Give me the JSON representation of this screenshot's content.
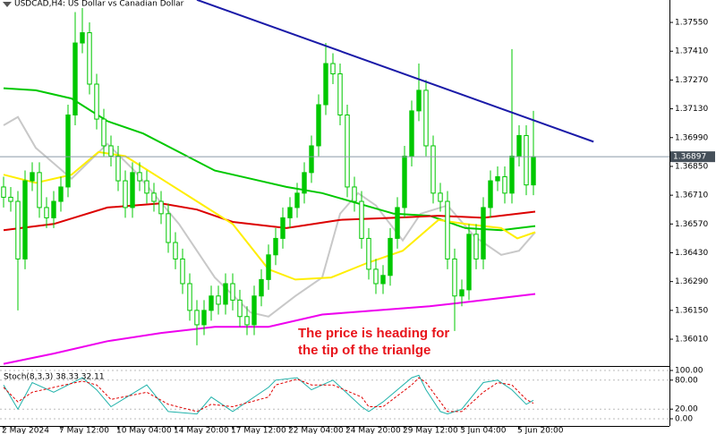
{
  "chart_data": [
    {
      "type": "candlestick",
      "title": "USDCAD,H4:  US Dollar vs Canadian Dollar",
      "categories": [
        "2 May 2024",
        null,
        null,
        null,
        null,
        null,
        null,
        null,
        "7 May 12:00",
        null,
        null,
        null,
        null,
        null,
        null,
        null,
        "10 May 04:00",
        null,
        null,
        null,
        null,
        null,
        null,
        null,
        "14 May 20:00",
        null,
        null,
        null,
        null,
        null,
        null,
        null,
        "17 May 12:00",
        null,
        null,
        null,
        null,
        null,
        null,
        null,
        "22 May 04:00",
        null,
        null,
        null,
        null,
        null,
        null,
        null,
        "24 May 20:00",
        null,
        null,
        null,
        null,
        null,
        null,
        null,
        "29 May 12:00",
        null,
        null,
        null,
        null,
        null,
        null,
        null,
        "3 Jun 04:00",
        null,
        null,
        null,
        null,
        null,
        null,
        null,
        "5 Jun 20:00",
        null,
        null
      ],
      "open": [
        1.3675,
        1.367,
        1.3668,
        1.364,
        1.3678,
        1.3682,
        1.3665,
        1.366,
        1.3668,
        1.3675,
        1.371,
        1.3745,
        1.375,
        1.3725,
        1.3708,
        1.3695,
        1.369,
        1.3678,
        1.3665,
        1.3682,
        1.3678,
        1.3672,
        1.3668,
        1.3662,
        1.3648,
        1.364,
        1.3628,
        1.3615,
        1.3608,
        1.3615,
        1.3622,
        1.3618,
        1.3628,
        1.362,
        1.3612,
        1.3608,
        1.3622,
        1.363,
        1.3642,
        1.365,
        1.366,
        1.3665,
        1.3672,
        1.3682,
        1.3695,
        1.3715,
        1.3735,
        1.373,
        1.371,
        1.3675,
        1.3668,
        1.365,
        1.3635,
        1.3628,
        1.3632,
        1.365,
        1.3665,
        1.369,
        1.3712,
        1.3722,
        1.3695,
        1.3672,
        1.3668,
        1.364,
        1.3622,
        1.3625,
        1.3652,
        1.364,
        1.3665,
        1.3678,
        1.368,
        1.3672,
        1.369,
        1.37,
        1.3676
      ],
      "high": [
        1.368,
        1.3675,
        1.3673,
        1.3683,
        1.3687,
        1.3687,
        1.367,
        1.3673,
        1.368,
        1.3715,
        1.376,
        1.3762,
        1.3755,
        1.373,
        1.3713,
        1.37,
        1.3695,
        1.3683,
        1.3687,
        1.3687,
        1.3683,
        1.3677,
        1.3673,
        1.3667,
        1.3653,
        1.3645,
        1.3633,
        1.362,
        1.362,
        1.3627,
        1.3627,
        1.3633,
        1.3633,
        1.3625,
        1.3617,
        1.3627,
        1.3635,
        1.3647,
        1.3655,
        1.3665,
        1.367,
        1.3677,
        1.3687,
        1.37,
        1.372,
        1.3745,
        1.374,
        1.3735,
        1.3715,
        1.368,
        1.3673,
        1.3655,
        1.364,
        1.3637,
        1.3655,
        1.367,
        1.3695,
        1.3717,
        1.3735,
        1.3727,
        1.37,
        1.3677,
        1.3673,
        1.3645,
        1.363,
        1.3657,
        1.3657,
        1.367,
        1.3683,
        1.3685,
        1.3685,
        1.3742,
        1.3705,
        1.3705,
        1.3712
      ],
      "low": [
        1.3665,
        1.3663,
        1.3615,
        1.3635,
        1.3673,
        1.366,
        1.3655,
        1.3655,
        1.3663,
        1.367,
        1.3705,
        1.374,
        1.372,
        1.3703,
        1.369,
        1.3685,
        1.3673,
        1.366,
        1.366,
        1.3673,
        1.3667,
        1.3663,
        1.3657,
        1.3643,
        1.3635,
        1.3623,
        1.361,
        1.3598,
        1.3603,
        1.361,
        1.3613,
        1.3613,
        1.3615,
        1.3607,
        1.3603,
        1.3603,
        1.3617,
        1.3625,
        1.3637,
        1.3645,
        1.3655,
        1.366,
        1.3667,
        1.3677,
        1.369,
        1.371,
        1.3725,
        1.3705,
        1.367,
        1.3663,
        1.3645,
        1.363,
        1.3623,
        1.3623,
        1.3627,
        1.3645,
        1.366,
        1.3685,
        1.3707,
        1.369,
        1.3667,
        1.3663,
        1.3635,
        1.3605,
        1.3617,
        1.362,
        1.3635,
        1.3635,
        1.366,
        1.3673,
        1.3667,
        1.3667,
        1.3685,
        1.3671,
        1.3671
      ],
      "close": [
        1.367,
        1.3668,
        1.364,
        1.3678,
        1.3682,
        1.3665,
        1.366,
        1.3668,
        1.3675,
        1.371,
        1.3745,
        1.375,
        1.3725,
        1.3708,
        1.3695,
        1.369,
        1.3678,
        1.3665,
        1.3682,
        1.3678,
        1.3672,
        1.3668,
        1.3662,
        1.3648,
        1.364,
        1.3628,
        1.3615,
        1.3608,
        1.3615,
        1.3622,
        1.3618,
        1.3628,
        1.362,
        1.3612,
        1.3608,
        1.3622,
        1.363,
        1.3642,
        1.365,
        1.366,
        1.3665,
        1.3672,
        1.3682,
        1.3695,
        1.3715,
        1.3735,
        1.373,
        1.371,
        1.3675,
        1.3668,
        1.365,
        1.3635,
        1.3628,
        1.3632,
        1.365,
        1.3665,
        1.369,
        1.3712,
        1.3722,
        1.3695,
        1.3672,
        1.3668,
        1.364,
        1.3622,
        1.3625,
        1.3652,
        1.364,
        1.3665,
        1.3678,
        1.368,
        1.3672,
        1.369,
        1.37,
        1.3676,
        1.36897
      ],
      "color": "#00c800",
      "xlim": [
        -0.5,
        93
      ],
      "ylim": [
        1.35884,
        1.37659
      ],
      "yticks": [
        {
          "value": 1.3755,
          "label": "1.37550"
        },
        {
          "value": 1.3741,
          "label": "1.37410"
        },
        {
          "value": 1.3727,
          "label": "1.37270"
        },
        {
          "value": 1.3713,
          "label": "1.37130"
        },
        {
          "value": 1.3699,
          "label": "1.36990"
        },
        {
          "value": 1.3685,
          "label": "1.36850"
        },
        {
          "value": 1.3671,
          "label": "1.36710"
        },
        {
          "value": 1.3657,
          "label": "1.36570"
        },
        {
          "value": 1.3643,
          "label": "1.36430"
        },
        {
          "value": 1.3629,
          "label": "1.36290"
        },
        {
          "value": 1.3615,
          "label": "1.36150"
        },
        {
          "value": 1.3601,
          "label": "1.36010"
        }
      ],
      "lines": [
        {
          "color": "#c8c8c8",
          "x": [
            0,
            2,
            4.5,
            9.5,
            14.5,
            18.25,
            24.5,
            29.5,
            34.5,
            37,
            40.75,
            44.5,
            47,
            49.5,
            52,
            55.75,
            58.25,
            62,
            65.75,
            69.5,
            72,
            74.25
          ],
          "values": [
            1.3705,
            1.3709,
            1.3694,
            1.3679,
            1.3696,
            1.3683,
            1.3657,
            1.3631,
            1.3614,
            1.3612,
            1.3622,
            1.3631,
            1.3662,
            1.3672,
            1.3666,
            1.3649,
            1.3662,
            1.3666,
            1.3651,
            1.3642,
            1.3644,
            1.3653
          ]
        },
        {
          "color": "#00c800",
          "x": [
            0,
            4.5,
            9.5,
            14.5,
            19.5,
            24.5,
            29.5,
            34.5,
            39.5,
            44.5,
            49.5,
            54.5,
            59.5,
            64.5,
            69.5,
            74.25
          ],
          "values": [
            1.3723,
            1.3722,
            1.3718,
            1.3707,
            1.3701,
            1.3692,
            1.3683,
            1.3679,
            1.3675,
            1.3672,
            1.3667,
            1.3662,
            1.3661,
            1.3655,
            1.3654,
            1.3656
          ]
        },
        {
          "color": "#dc0000",
          "x": [
            0,
            7,
            14.5,
            22,
            27,
            32,
            39.5,
            47,
            54.5,
            60.75,
            67,
            74.25
          ],
          "values": [
            1.3654,
            1.3657,
            1.3665,
            1.3667,
            1.3664,
            1.3658,
            1.3655,
            1.3659,
            1.366,
            1.3661,
            1.366,
            1.3663
          ]
        },
        {
          "color": "#ffee00",
          "x": [
            0,
            4.5,
            9.5,
            13.25,
            17,
            22,
            27,
            32,
            37,
            40.75,
            45.75,
            50.75,
            55.75,
            60.75,
            64.5,
            69.5,
            71.75,
            74.25
          ],
          "values": [
            1.3681,
            1.3677,
            1.3681,
            1.3692,
            1.369,
            1.3679,
            1.3668,
            1.3657,
            1.3635,
            1.363,
            1.3631,
            1.3638,
            1.3644,
            1.3659,
            1.3657,
            1.3655,
            1.365,
            1.3653
          ]
        },
        {
          "color": "#ee00ee",
          "x": [
            0,
            7,
            14.5,
            22,
            29.5,
            37,
            44.5,
            52,
            59.5,
            67,
            74.25
          ],
          "values": [
            1.3589,
            1.3594,
            1.36,
            1.3604,
            1.3607,
            1.3607,
            1.3613,
            1.3615,
            1.3617,
            1.362,
            1.3623
          ]
        }
      ],
      "trendline": {
        "color": "#1a1aa8",
        "x": [
          27,
          82.4
        ],
        "values": [
          1.3766,
          1.3697
        ]
      },
      "current_price": {
        "value": 1.36897,
        "label": "1.36897"
      },
      "annotations": [
        "The price is heading for",
        "the tip of the trianlge"
      ]
    },
    {
      "type": "line",
      "title": "Stoch(8,3,3) 38.33 32.11",
      "x": [
        0,
        2,
        4,
        7,
        11,
        13,
        15,
        20,
        23,
        27,
        29,
        32,
        37,
        38,
        41,
        43,
        46,
        50,
        51,
        53,
        57,
        58,
        59,
        61,
        62,
        64,
        67,
        69,
        71,
        73,
        74
      ],
      "series": [
        {
          "color": "#20b2aa",
          "values": [
            70,
            20,
            75,
            55,
            85,
            60,
            25,
            70,
            15,
            10,
            45,
            15,
            65,
            80,
            85,
            60,
            80,
            25,
            15,
            35,
            85,
            90,
            60,
            15,
            10,
            20,
            75,
            80,
            60,
            30,
            38.33
          ]
        },
        {
          "color": "#e00000",
          "dash": true,
          "values": [
            65,
            35,
            55,
            65,
            78,
            70,
            40,
            55,
            30,
            15,
            30,
            25,
            45,
            70,
            82,
            70,
            70,
            45,
            25,
            25,
            70,
            85,
            75,
            35,
            15,
            15,
            55,
            75,
            70,
            40,
            32.11
          ]
        }
      ],
      "xlim": [
        -0.5,
        93
      ],
      "ylim": [
        0,
        100
      ],
      "yticks": [
        {
          "value": 100,
          "label": "100.00"
        },
        {
          "value": 80,
          "label": "80.00"
        },
        {
          "value": 20,
          "label": "20.00"
        },
        {
          "value": 0,
          "label": "0.00"
        }
      ]
    }
  ]
}
